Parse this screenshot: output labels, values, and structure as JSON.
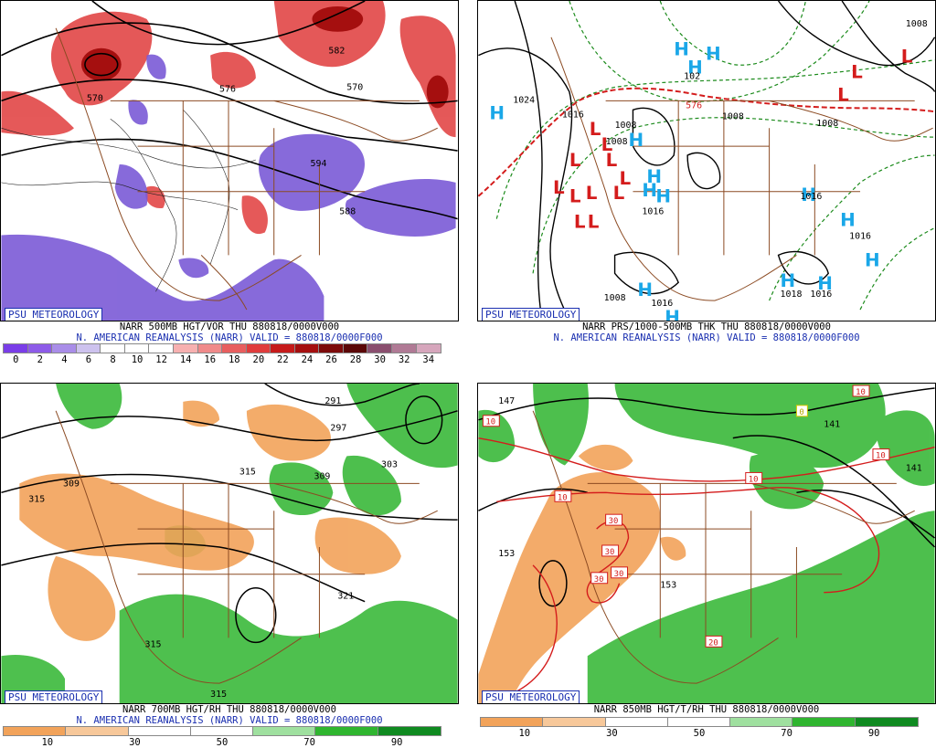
{
  "credit": "PSU METEOROLOGY",
  "colors": {
    "vor_pos": "#e03c3c",
    "vor_neg": "#7b5ad6",
    "rh_dry": "#f2a35a",
    "rh_moist": "#2fb52f",
    "high": "#1aa7e8",
    "low": "#d41c1c",
    "border": "#8b4a22",
    "text_blue": "#1a2fb0"
  },
  "panels": [
    {
      "id": "p500",
      "line1": "NARR 500MB HGT/VOR THU 880818/0000V000",
      "line2": "N. AMERICAN REANALYSIS (NARR) VALID = 880818/0000F000",
      "contour_labels": [
        "570",
        "570",
        "588",
        "576",
        "594",
        "582"
      ],
      "colorbar": {
        "labels": [
          "0",
          "2",
          "4",
          "6",
          "8",
          "10",
          "12",
          "14",
          "16",
          "18",
          "20",
          "22",
          "24",
          "26",
          "28",
          "30",
          "32",
          "34"
        ],
        "colors": [
          "#7a3de8",
          "#8d5be8",
          "#a98de8",
          "#cdc2ee",
          "#ffffff",
          "#ffffff",
          "#ffffff",
          "#f7b0b0",
          "#f08a8a",
          "#e85e5e",
          "#e03c3c",
          "#c61a1a",
          "#a50f0f",
          "#7d0a0a",
          "#5b0707",
          "#8a4e6e",
          "#b07a95",
          "#d6a6bc"
        ]
      }
    },
    {
      "id": "psl",
      "line1": "NARR PRS/1000-500MB THK THU 880818/0000V000",
      "line2": "N. AMERICAN REANALYSIS (NARR) VALID = 880818/0000F000",
      "contour_labels": [
        "1024",
        "1016",
        "1008",
        "1016",
        "1008",
        "1016",
        "1016",
        "1018",
        "1016",
        "1008",
        "1016",
        "1008",
        "1008",
        "1008",
        "576",
        "102"
      ],
      "high_symbol": "H",
      "low_symbol": "L"
    },
    {
      "id": "p700",
      "line1": "NARR 700MB HGT/RH THU 880818/0000V000",
      "line2": "N. AMERICAN REANALYSIS (NARR) VALID = 880818/0000F000",
      "contour_labels": [
        "291",
        "297",
        "303",
        "309",
        "309",
        "315",
        "315",
        "321",
        "315",
        "315"
      ],
      "colorbar": {
        "labels": [
          "10",
          "30",
          "50",
          "70",
          "90"
        ],
        "colors": [
          "#f2a35a",
          "#f7c89a",
          "#ffffff",
          "#ffffff",
          "#9fe09f",
          "#2fb52f",
          "#0f8a20"
        ]
      }
    },
    {
      "id": "p850",
      "line1": "NARR 850MB HGT/T/RH THU 880818/0000V000",
      "line2": "",
      "contour_labels": [
        "147",
        "141",
        "141",
        "153",
        "153"
      ],
      "temp_labels": [
        "10",
        "10",
        "10",
        "10",
        "0",
        "10",
        "30",
        "30",
        "30",
        "30",
        "20"
      ],
      "colorbar": {
        "labels": [
          "10",
          "30",
          "50",
          "70",
          "90"
        ],
        "colors": [
          "#f2a35a",
          "#f7c89a",
          "#ffffff",
          "#ffffff",
          "#9fe09f",
          "#2fb52f",
          "#0f8a20"
        ]
      }
    }
  ]
}
